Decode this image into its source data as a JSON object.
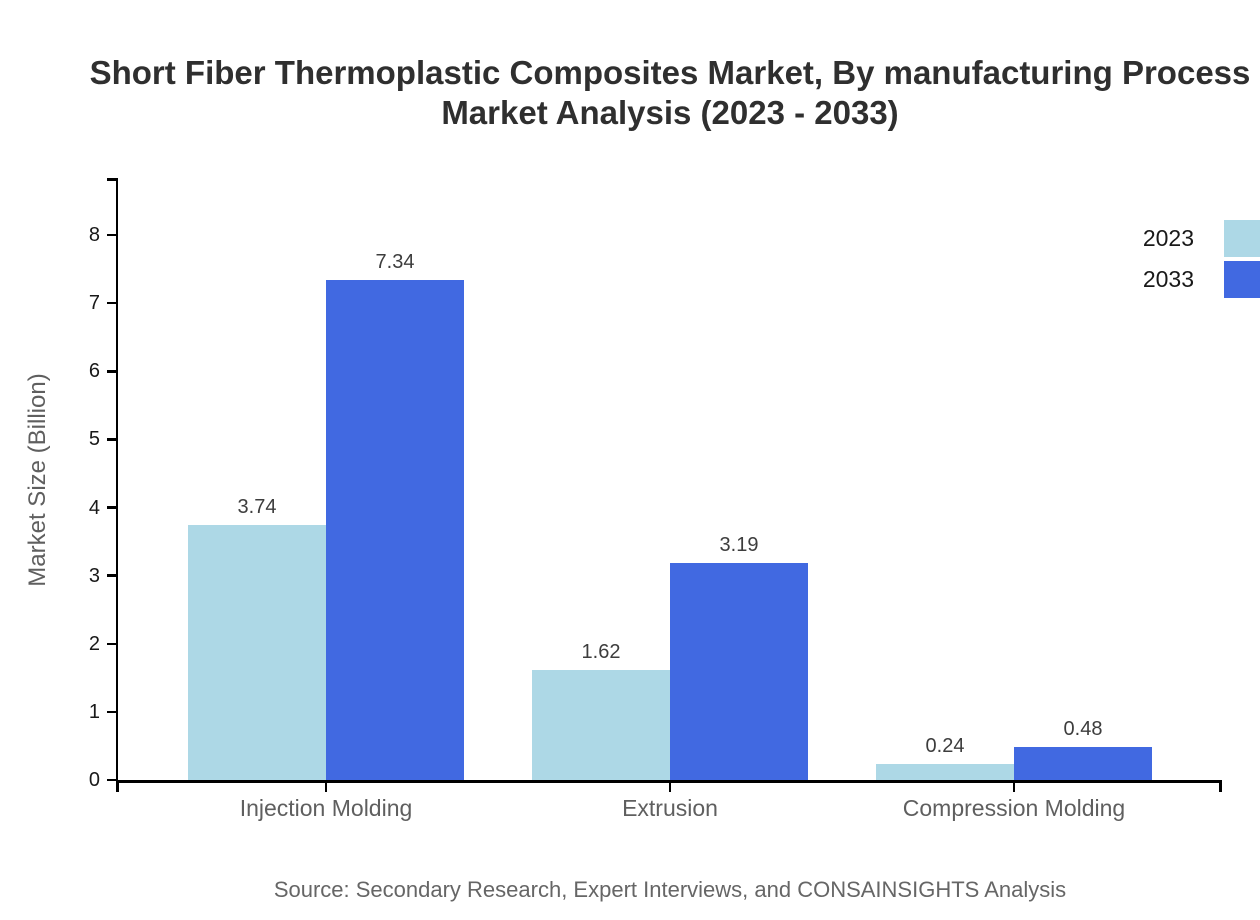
{
  "page": {
    "background": "#ffffff"
  },
  "chart_data": {
    "type": "bar",
    "title": "Short Fiber Thermoplastic Composites Market, By manufacturing Process Market Analysis (2023 - 2033)",
    "title_lines": [
      "Short Fiber Thermoplastic Composites Market, By manufacturing Process",
      "Market Analysis (2023 - 2033)"
    ],
    "categories": [
      "Injection Molding",
      "Extrusion",
      "Compression Molding"
    ],
    "series": [
      {
        "name": "2023",
        "color": "#ADD8E6",
        "values": [
          3.74,
          1.62,
          0.24
        ]
      },
      {
        "name": "2033",
        "color": "#4169E1",
        "values": [
          7.34,
          3.19,
          0.48
        ]
      }
    ],
    "value_labels": [
      [
        "3.74",
        "1.62",
        "0.24"
      ],
      [
        "7.34",
        "3.19",
        "0.48"
      ]
    ],
    "xlabel": "",
    "ylabel": "Market Size (Billion)",
    "ylim": [
      0,
      8.85
    ],
    "yticks": [
      0,
      1,
      2,
      3,
      4,
      5,
      6,
      7,
      8
    ],
    "grid": false,
    "legend_position": "top-right",
    "source": "Source: Secondary Research, Expert Interviews, and CONSAINSIGHTS Analysis"
  },
  "colors": {
    "title": "#2f2f2f",
    "axis": "#000000",
    "tick_label": "#191919",
    "value_label": "#3d3d3d",
    "category_label": "#5f5f5f",
    "source": "#666666"
  }
}
